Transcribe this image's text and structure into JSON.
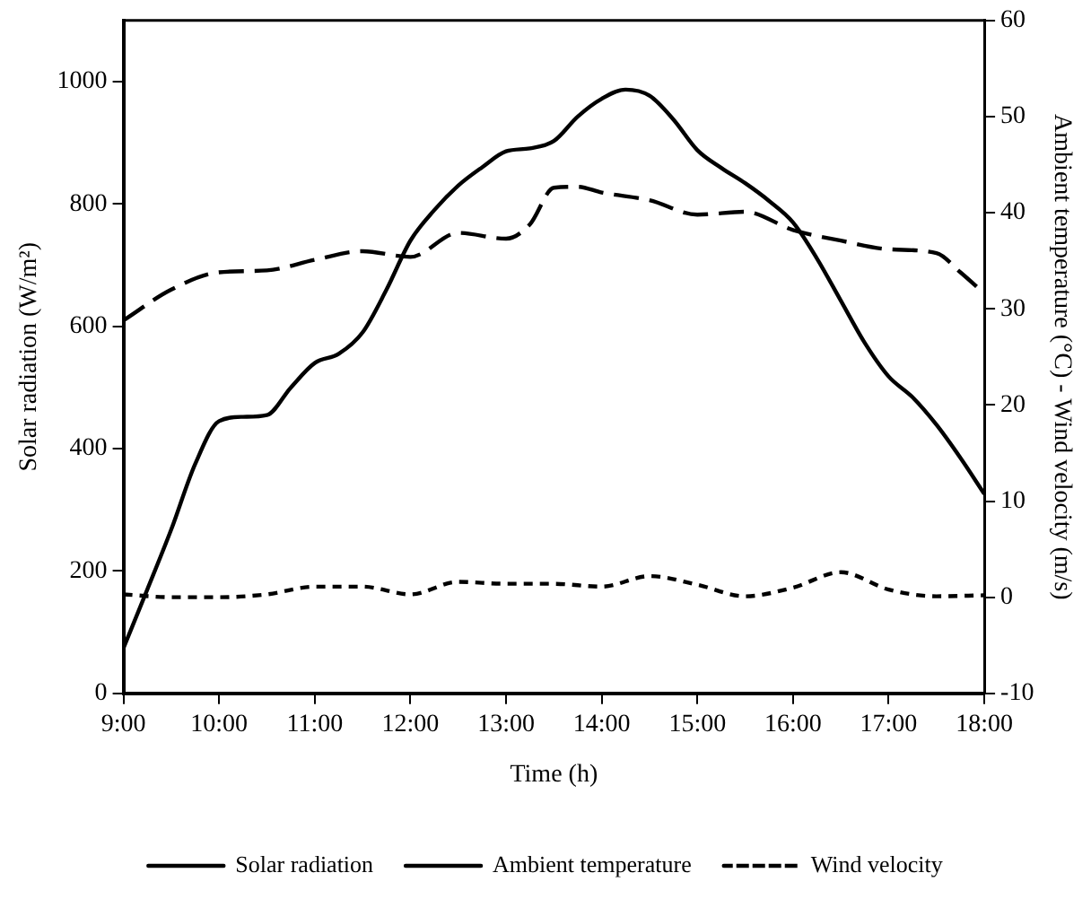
{
  "chart_data": {
    "type": "line",
    "xlabel": "Time (h)",
    "ylabel": "Solar radiation (W/m²)",
    "y2label": "Ambient temperature (°C) - Wind velocity (m/s)",
    "xlim": [
      9,
      18
    ],
    "xticks": [
      {
        "value": 9,
        "label": "9:00"
      },
      {
        "value": 10,
        "label": "10:00"
      },
      {
        "value": 11,
        "label": "11:00"
      },
      {
        "value": 12,
        "label": "12:00"
      },
      {
        "value": 13,
        "label": "13:00"
      },
      {
        "value": 14,
        "label": "14:00"
      },
      {
        "value": 15,
        "label": "15:00"
      },
      {
        "value": 16,
        "label": "16:00"
      },
      {
        "value": 17,
        "label": "17:00"
      },
      {
        "value": 18,
        "label": "18:00"
      }
    ],
    "ylim": [
      0,
      1100
    ],
    "yticks": [
      0,
      200,
      400,
      600,
      800,
      1000
    ],
    "y2lim": [
      -10,
      60
    ],
    "y2ticks": [
      -10,
      0,
      10,
      20,
      30,
      40,
      50,
      60
    ],
    "grid": false,
    "legend": "bottom",
    "marker": "none",
    "series": [
      {
        "name": "Solar radiation",
        "color": "#000000",
        "line_style": "solid",
        "x": [
          9,
          9.25,
          9.5,
          9.75,
          10,
          10.25,
          10.5,
          10.75,
          11,
          11.25,
          11.5,
          11.75,
          12,
          12.25,
          12.5,
          12.75,
          13,
          13.25,
          13.5,
          13.75,
          14,
          14.25,
          14.5,
          14.75,
          15,
          15.25,
          15.5,
          15.75,
          16,
          16.25,
          16.5,
          16.75,
          17,
          17.25,
          17.5,
          17.75,
          18
        ],
        "values": [
          74,
          170,
          268,
          375,
          445,
          452,
          455,
          500,
          540,
          555,
          590,
          660,
          740,
          790,
          830,
          860,
          886,
          891,
          903,
          943,
          972,
          987,
          977,
          938,
          888,
          859,
          834,
          805,
          770,
          711,
          642,
          573,
          518,
          484,
          439,
          385,
          326
        ]
      },
      {
        "name": "Ambient temperature",
        "color": "#000000",
        "line_style": "dashed",
        "axis": "y2",
        "x": [
          9,
          9.5,
          10,
          10.5,
          11,
          11.5,
          12,
          12.5,
          13,
          13.25,
          13.5,
          13.75,
          14,
          14.5,
          15,
          15.5,
          16,
          16.5,
          17,
          17.5,
          17.75,
          18
        ],
        "values": [
          28.8,
          32,
          33.8,
          34,
          35.1,
          36,
          35.4,
          37.9,
          37.3,
          38.8,
          42.6,
          42.7,
          42.1,
          41.3,
          39.8,
          40.1,
          38.2,
          37.1,
          36.2,
          35.8,
          33.8,
          31.6
        ]
      },
      {
        "name": "Wind velocity",
        "color": "#000000",
        "line_style": "dotted",
        "axis": "y2",
        "x": [
          9,
          9.5,
          10,
          10.5,
          11,
          11.5,
          12,
          12.5,
          13,
          13.5,
          14,
          14.5,
          15,
          15.5,
          16,
          16.5,
          17,
          17.5,
          18
        ],
        "values": [
          0.3,
          0,
          0,
          0.3,
          1.1,
          1.1,
          0.3,
          1.6,
          1.4,
          1.4,
          1.1,
          2.2,
          1.3,
          0.1,
          1,
          2.6,
          0.8,
          0.1,
          0.2
        ]
      }
    ]
  }
}
